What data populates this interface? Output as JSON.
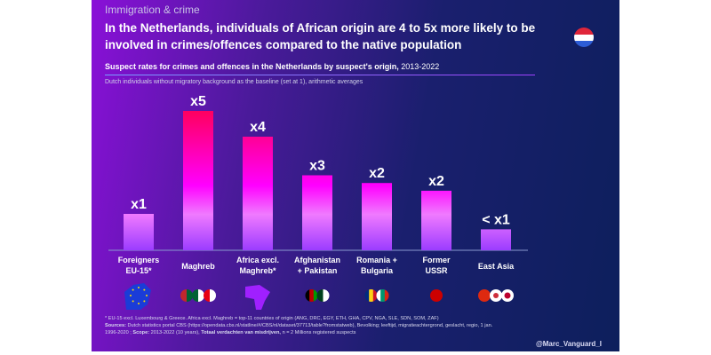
{
  "kicker": "Immigration & crime",
  "headline": "In the Netherlands, individuals of African origin are 4 to 5x more likely to be involved in crimes/offences compared to the native population",
  "subtitle": "Suspect rates for crimes and offences in the Netherlands by suspect's origin,",
  "subtitle_years": "2013-2022",
  "note": "Dutch individuals without migratory background as the baseline (set at 1), arithmetic averages",
  "footnote_1": "* EU-15 excl. Luxembourg & Greece. Africa excl. Maghreb = top-11 countries of origin (ANG, DRC, EGY, ETH, GHA, CPV, NGA, SLE, SDN, SOM, ZAF)",
  "footnote_sources_label": "Sources:",
  "footnote_sources": "Dutch statistics portal CBS (https://opendata.cbs.nl/statline/#/CBS/nl/dataset/37713/table?fromstatweb), Bevolking; leeftijd, migratieachtergrond, geslacht, regio, 1 jan. 1996-2020 ;",
  "footnote_scope_label": "Scope:",
  "footnote_scope": "2013-2022 (10 years),",
  "footnote_total_label": "Totaal verdachten van misdrijven,",
  "footnote_total": "n = 2 Millions registered suspects",
  "handle": "@Marc_Vanguard_I",
  "colors": {
    "bar_top": "#ff0055",
    "bar_mid": "#ff00ff",
    "bar_bottom": "#9b3cff",
    "background_left": "#8a10d8",
    "background_right": "#0d1f5c"
  },
  "chart_data": {
    "type": "bar",
    "title": "Suspect rates for crimes and offences in the Netherlands by suspect's origin, 2013-2022",
    "categories": [
      "Foreigners EU-15*",
      "Maghreb",
      "Africa excl. Maghreb*",
      "Afghanistan + Pakistan",
      "Romania + Bulgaria",
      "Former USSR",
      "East Asia"
    ],
    "category_lines": [
      [
        "Foreigners",
        "EU-15*"
      ],
      [
        "Maghreb"
      ],
      [
        "Africa excl.",
        "Maghreb*"
      ],
      [
        "Afghanistan",
        "+ Pakistan"
      ],
      [
        "Romania +",
        "Bulgaria"
      ],
      [
        "Former",
        "USSR"
      ],
      [
        "East Asia"
      ]
    ],
    "values": [
      1,
      5,
      4,
      2.5,
      2.2,
      1.9,
      0.4
    ],
    "data_labels": [
      "x1",
      "x5",
      "x4",
      "x3",
      "x2",
      "x2",
      "< x1"
    ],
    "icons": [
      [
        "eu-map"
      ],
      [
        "morocco-flag",
        "algeria-flag",
        "tunisia-flag"
      ],
      [
        "africa-map"
      ],
      [
        "afghanistan-flag",
        "pakistan-flag"
      ],
      [
        "romania-flag",
        "bulgaria-flag"
      ],
      [
        "ussr-flag"
      ],
      [
        "china-flag",
        "south-korea-flag",
        "japan-flag"
      ]
    ],
    "grid": false,
    "legend": "none"
  }
}
